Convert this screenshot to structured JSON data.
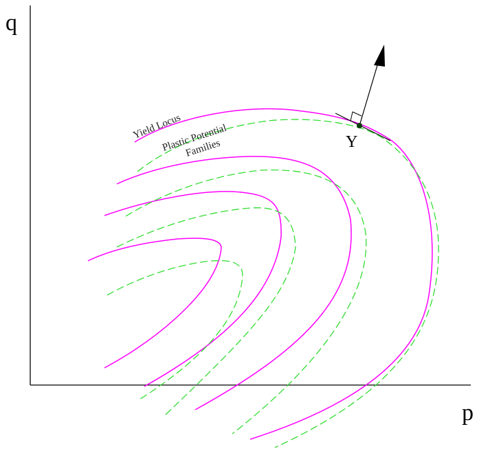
{
  "axes": {
    "y_label": "q",
    "x_label": "p"
  },
  "point": {
    "label": "Y"
  },
  "labels": {
    "yield_locus": "Yield Locus",
    "plastic_potential_line1": "Plastic Potential",
    "plastic_potential_line2": "Families"
  },
  "colors": {
    "yield_locus": "#ff00ff",
    "plastic_potential": "#33dd33",
    "axes": "#000000"
  }
}
